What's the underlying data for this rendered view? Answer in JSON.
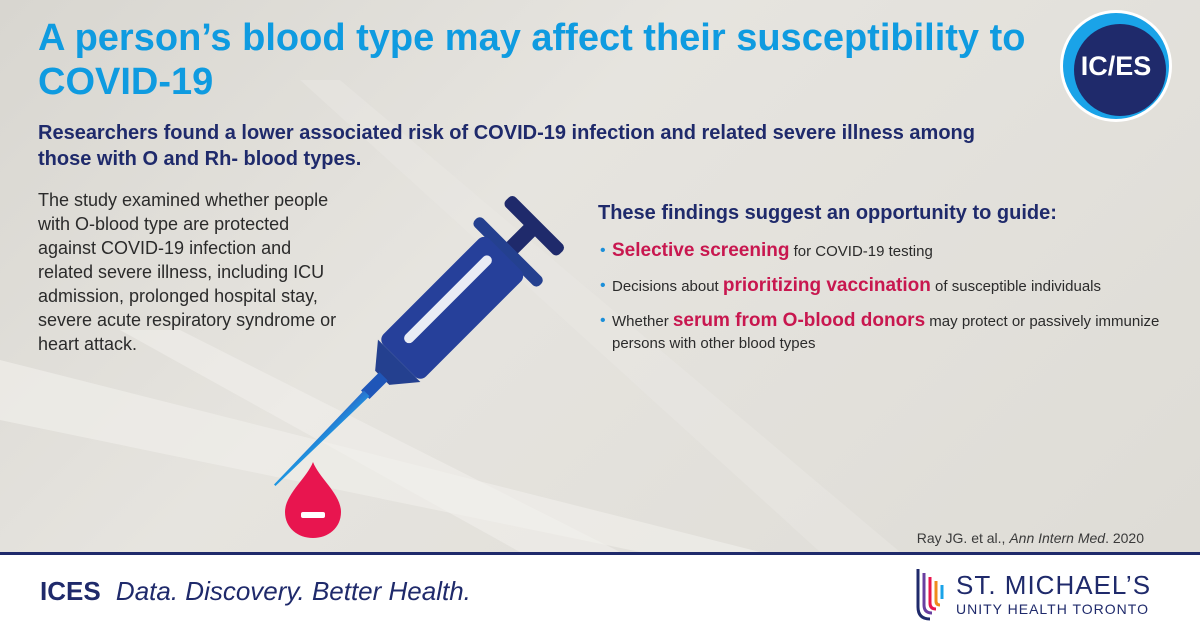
{
  "header": {
    "title": "A person’s blood type may affect their susceptibility to COVID-19",
    "logo_text": "IC/ES",
    "subtitle": "Researchers found a lower associated risk of COVID-19 infection and related severe illness among those with O and Rh- blood types."
  },
  "study": {
    "description": "The study examined whether people with O-blood type are protected against COVID-19 infection and related severe illness, including ICU admission, prolonged hospital stay, severe acute respiratory syndrome or heart attack."
  },
  "findings": {
    "heading": "These findings suggest an opportunity to guide:",
    "items": [
      {
        "pre": "",
        "highlight": "Selective screening",
        "post": " for COVID-19 testing"
      },
      {
        "pre": "Decisions about ",
        "highlight": "prioritizing vaccination",
        "post": " of susceptible individuals"
      },
      {
        "pre": "Whether ",
        "highlight": "serum from O-blood donors",
        "post": " may protect or passively immunize persons with other blood types"
      }
    ]
  },
  "citation": {
    "authors": "Ray JG. et al., ",
    "journal": "Ann Intern Med",
    "year": ". 2020"
  },
  "footer": {
    "brand": "ICES",
    "tagline": "Data. Discovery. Better Health.",
    "partner_name": "ST. MICHAEL’S",
    "partner_sub": "UNITY HEALTH TORONTO"
  },
  "icons": {
    "syringe": "syringe-icon",
    "blood_drop": "blood-drop-negative-icon",
    "logo": "ices-logo"
  },
  "colors": {
    "title": "#0f9be0",
    "navy": "#1f2a6b",
    "highlight": "#c8174f",
    "drop": "#e8154f"
  }
}
